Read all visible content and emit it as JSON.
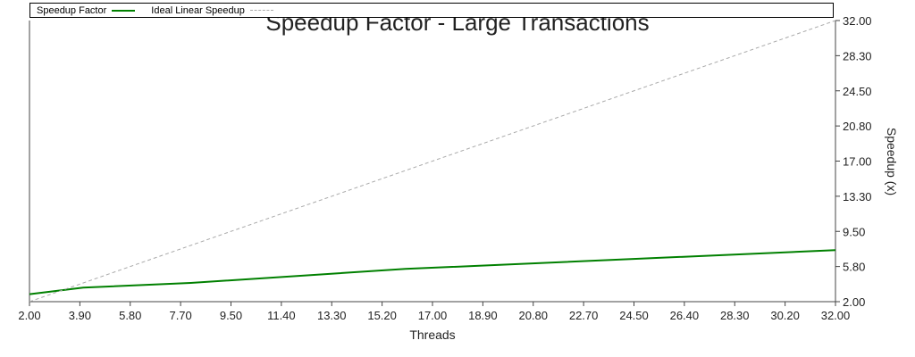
{
  "chart_data": {
    "type": "line",
    "title": "Speedup Factor - Large Transactions",
    "xlabel": "Threads",
    "ylabel": "Speedup (x)",
    "x_ticks": [
      "2.00",
      "3.90",
      "5.80",
      "7.70",
      "9.50",
      "11.40",
      "13.30",
      "15.20",
      "17.00",
      "18.90",
      "20.80",
      "22.70",
      "24.50",
      "26.40",
      "28.30",
      "30.20",
      "32.00"
    ],
    "y_ticks": [
      "2.00",
      "5.80",
      "9.50",
      "13.30",
      "17.00",
      "20.80",
      "24.50",
      "28.30",
      "32.00"
    ],
    "xlim": [
      2,
      32
    ],
    "ylim": [
      2,
      32
    ],
    "y_axis_position": "right",
    "grid": false,
    "legend_position": "top",
    "series": [
      {
        "name": "Speedup Factor",
        "color": "#008000",
        "style": "solid",
        "x": [
          2,
          4,
          8,
          16,
          32
        ],
        "y": [
          2.8,
          3.5,
          4.0,
          5.5,
          7.5
        ]
      },
      {
        "name": "Ideal Linear Speedup",
        "color": "#aaaaaa",
        "style": "dashed",
        "x": [
          2,
          32
        ],
        "y": [
          2,
          32
        ]
      }
    ]
  }
}
